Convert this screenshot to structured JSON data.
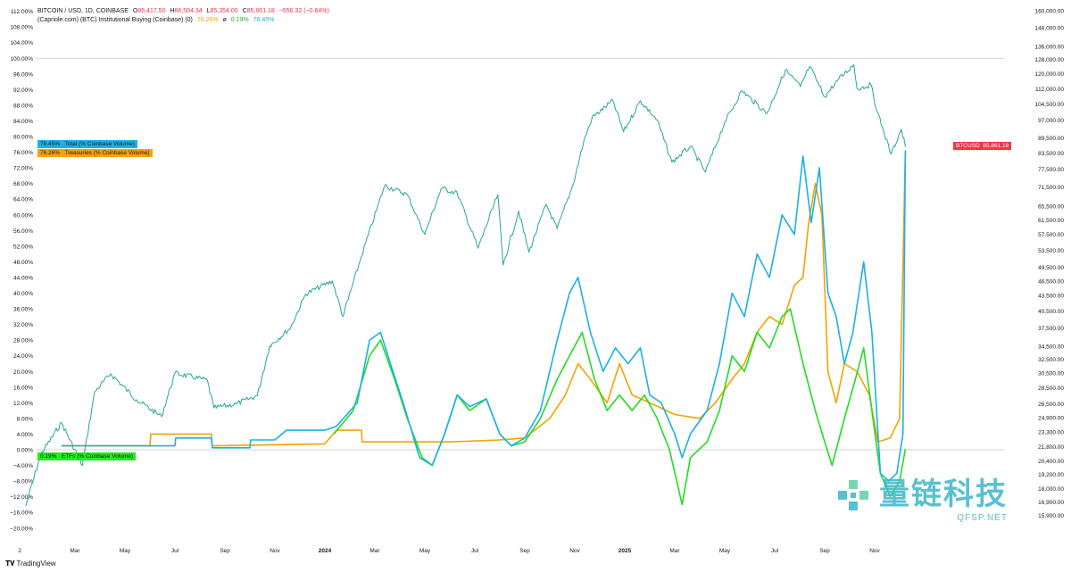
{
  "header": {
    "symbol": "BITCOIN / USD, 1D, COINBASE",
    "open_label": "O",
    "open": "86,417.50",
    "high_label": "H",
    "high": "86,504.34",
    "low_label": "L",
    "low": "85,354.00",
    "close_label": "C",
    "close": "85,861.18",
    "change": "−556.32 (−0.64%)",
    "indicator": "(Capriole.com) (BTC) Institutional Buying (Coinbase) (0)",
    "ind_treasuries": "76.26%",
    "ind_sep": "ø",
    "ind_etfs": "0.19%",
    "ind_total": "76.45%"
  },
  "tags": {
    "total": {
      "value": "76.45%",
      "label": "Total (% Coinbase Volume)"
    },
    "treasuries": {
      "value": "76.26%",
      "label": "Treasuries (% Coinbase Volume)"
    },
    "etfs": {
      "value": "0.19%",
      "label": "ETFs (% Coinbase Volume)"
    },
    "price": {
      "symbol": "BTCUSD",
      "value": "85,861.18"
    }
  },
  "colors": {
    "total": "#1cb0e6",
    "treasuries": "#f5a300",
    "etfs": "#22dd22",
    "price": "#26a69a",
    "price_tag": "#f23645",
    "down": "#f23645"
  },
  "footer": {
    "brand": "TradingView"
  },
  "watermark": {
    "main": "量链科技",
    "sub": "QFSP.NET"
  },
  "chart_data": {
    "type": "line",
    "left_axis": {
      "unit": "%",
      "range": [
        -20,
        112
      ],
      "ticks": [
        "112.00%",
        "108.00%",
        "104.00%",
        "100.00%",
        "96.00%",
        "92.00%",
        "88.00%",
        "84.00%",
        "80.00%",
        "76.00%",
        "72.00%",
        "68.00%",
        "64.00%",
        "60.00%",
        "56.00%",
        "52.00%",
        "48.00%",
        "44.00%",
        "40.00%",
        "36.00%",
        "32.00%",
        "28.00%",
        "24.00%",
        "20.00%",
        "16.00%",
        "12.00%",
        "8.00%",
        "4.00%",
        "0.00%",
        "−4.00%",
        "−8.00%",
        "−12.00%",
        "−16.00%",
        "−20.00%"
      ]
    },
    "right_axis": {
      "scale": "log",
      "ticks": [
        "160,000.00",
        "148,000.00",
        "136,000.00",
        "128,000.00",
        "120,000.00",
        "112,000.00",
        "104,500.00",
        "97,000.00",
        "89,500.00",
        "83,500.00",
        "77,500.00",
        "71,500.00",
        "65,500.00",
        "61,500.00",
        "57,500.00",
        "53,500.00",
        "49,500.00",
        "46,500.00",
        "43,500.00",
        "40,500.00",
        "37,500.00",
        "34,500.00",
        "32,500.00",
        "30,500.00",
        "28,500.00",
        "26,500.00",
        "24,900.00",
        "23,300.00",
        "21,800.00",
        "20,400.00",
        "19,200.00",
        "18,000.00",
        "16,900.00",
        "15,900.00"
      ]
    },
    "x_ticks": [
      [
        "2",
        "2023-01-01"
      ],
      [
        "Mar",
        "2023-03-01"
      ],
      [
        "May",
        "2023-05-01"
      ],
      [
        "Jul",
        "2023-07-01"
      ],
      [
        "Sep",
        "2023-09-01"
      ],
      [
        "Nov",
        "2023-11-01"
      ],
      [
        "2024",
        "2024-01-01"
      ],
      [
        "Mar",
        "2024-03-01"
      ],
      [
        "May",
        "2024-05-01"
      ],
      [
        "Jul",
        "2024-07-01"
      ],
      [
        "Sep",
        "2024-09-01"
      ],
      [
        "Nov",
        "2024-11-01"
      ],
      [
        "2025",
        "2025-01-01"
      ],
      [
        "Mar",
        "2025-03-01"
      ],
      [
        "May",
        "2025-05-01"
      ],
      [
        "Jul",
        "2025-07-01"
      ],
      [
        "Sep",
        "2025-09-01"
      ],
      [
        "Nov",
        "2025-11-01"
      ]
    ],
    "series": [
      {
        "name": "BTCUSD",
        "axis": "right",
        "points": [
          [
            "2023-01-02",
            16600
          ],
          [
            "2023-01-20",
            21000
          ],
          [
            "2023-02-15",
            24300
          ],
          [
            "2023-03-10",
            20000
          ],
          [
            "2023-03-25",
            28000
          ],
          [
            "2023-04-14",
            30400
          ],
          [
            "2023-05-15",
            27000
          ],
          [
            "2023-06-15",
            25000
          ],
          [
            "2023-07-01",
            30500
          ],
          [
            "2023-08-10",
            29500
          ],
          [
            "2023-08-18",
            26000
          ],
          [
            "2023-09-15",
            26500
          ],
          [
            "2023-10-10",
            27500
          ],
          [
            "2023-10-25",
            34500
          ],
          [
            "2023-11-20",
            37500
          ],
          [
            "2023-12-08",
            43800
          ],
          [
            "2024-01-10",
            46500
          ],
          [
            "2024-01-23",
            39500
          ],
          [
            "2024-02-15",
            52000
          ],
          [
            "2024-03-13",
            72000
          ],
          [
            "2024-04-10",
            69000
          ],
          [
            "2024-05-01",
            57500
          ],
          [
            "2024-05-21",
            71000
          ],
          [
            "2024-06-10",
            69500
          ],
          [
            "2024-07-05",
            54000
          ],
          [
            "2024-07-29",
            69000
          ],
          [
            "2024-08-05",
            50000
          ],
          [
            "2024-08-24",
            64000
          ],
          [
            "2024-09-06",
            53000
          ],
          [
            "2024-09-27",
            66000
          ],
          [
            "2024-10-10",
            59000
          ],
          [
            "2024-10-29",
            72000
          ],
          [
            "2024-11-12",
            88000
          ],
          [
            "2024-11-22",
            98000
          ],
          [
            "2024-12-17",
            106000
          ],
          [
            "2024-12-30",
            92000
          ],
          [
            "2025-01-20",
            106000
          ],
          [
            "2025-02-10",
            97000
          ],
          [
            "2025-02-28",
            80000
          ],
          [
            "2025-03-20",
            86000
          ],
          [
            "2025-04-08",
            76500
          ],
          [
            "2025-05-01",
            96000
          ],
          [
            "2025-05-22",
            111000
          ],
          [
            "2025-06-22",
            100000
          ],
          [
            "2025-07-14",
            122000
          ],
          [
            "2025-08-02",
            113000
          ],
          [
            "2025-08-13",
            124000
          ],
          [
            "2025-09-01",
            108000
          ],
          [
            "2025-09-18",
            117000
          ],
          [
            "2025-10-06",
            125000
          ],
          [
            "2025-10-10",
            112000
          ],
          [
            "2025-10-27",
            114000
          ],
          [
            "2025-11-04",
            101000
          ],
          [
            "2025-11-21",
            83000
          ],
          [
            "2025-12-03",
            93000
          ],
          [
            "2025-12-08",
            85861
          ]
        ]
      },
      {
        "name": "Total (% Coinbase Volume)",
        "axis": "left",
        "points": [
          [
            "2023-02-15",
            1
          ],
          [
            "2023-05-01",
            1
          ],
          [
            "2023-07-01",
            1
          ],
          [
            "2023-07-02",
            3
          ],
          [
            "2023-08-15",
            3
          ],
          [
            "2023-08-16",
            0.5
          ],
          [
            "2023-10-01",
            0.5
          ],
          [
            "2023-10-02",
            2.5
          ],
          [
            "2023-11-01",
            2.5
          ],
          [
            "2023-11-15",
            5
          ],
          [
            "2024-01-01",
            5
          ],
          [
            "2024-01-15",
            6
          ],
          [
            "2024-02-10",
            12
          ],
          [
            "2024-02-25",
            28
          ],
          [
            "2024-03-08",
            30
          ],
          [
            "2024-03-20",
            22
          ],
          [
            "2024-04-05",
            12
          ],
          [
            "2024-04-25",
            -2
          ],
          [
            "2024-05-10",
            -4
          ],
          [
            "2024-05-25",
            4
          ],
          [
            "2024-06-10",
            14
          ],
          [
            "2024-06-25",
            11
          ],
          [
            "2024-07-15",
            13
          ],
          [
            "2024-08-01",
            4
          ],
          [
            "2024-08-15",
            1
          ],
          [
            "2024-09-01",
            3
          ],
          [
            "2024-09-20",
            10
          ],
          [
            "2024-10-10",
            28
          ],
          [
            "2024-10-25",
            40
          ],
          [
            "2024-11-05",
            44
          ],
          [
            "2024-11-20",
            30
          ],
          [
            "2024-12-05",
            20
          ],
          [
            "2024-12-20",
            26
          ],
          [
            "2025-01-05",
            22
          ],
          [
            "2025-01-20",
            26
          ],
          [
            "2025-02-01",
            14
          ],
          [
            "2025-02-15",
            12
          ],
          [
            "2025-03-01",
            4
          ],
          [
            "2025-03-10",
            -2
          ],
          [
            "2025-03-20",
            4
          ],
          [
            "2025-04-10",
            10
          ],
          [
            "2025-04-25",
            22
          ],
          [
            "2025-05-10",
            40
          ],
          [
            "2025-05-25",
            34
          ],
          [
            "2025-06-10",
            50
          ],
          [
            "2025-06-25",
            44
          ],
          [
            "2025-07-10",
            60
          ],
          [
            "2025-07-25",
            55
          ],
          [
            "2025-08-05",
            75
          ],
          [
            "2025-08-15",
            58
          ],
          [
            "2025-08-25",
            72
          ],
          [
            "2025-09-05",
            40
          ],
          [
            "2025-09-15",
            34
          ],
          [
            "2025-09-25",
            22
          ],
          [
            "2025-10-05",
            30
          ],
          [
            "2025-10-18",
            48
          ],
          [
            "2025-10-28",
            30
          ],
          [
            "2025-11-08",
            -6
          ],
          [
            "2025-11-18",
            -8
          ],
          [
            "2025-11-28",
            -6
          ],
          [
            "2025-12-05",
            4
          ],
          [
            "2025-12-08",
            76.45
          ]
        ]
      },
      {
        "name": "Treasuries (% Coinbase Volume)",
        "axis": "left",
        "points": [
          [
            "2023-02-15",
            1
          ],
          [
            "2023-06-01",
            1
          ],
          [
            "2023-06-02",
            4
          ],
          [
            "2023-08-15",
            4
          ],
          [
            "2023-08-16",
            1
          ],
          [
            "2024-01-01",
            1.5
          ],
          [
            "2024-01-15",
            5
          ],
          [
            "2024-02-15",
            5
          ],
          [
            "2024-02-16",
            2
          ],
          [
            "2024-06-01",
            2
          ],
          [
            "2024-08-01",
            2.5
          ],
          [
            "2024-09-01",
            3
          ],
          [
            "2024-10-01",
            8
          ],
          [
            "2024-10-20",
            14
          ],
          [
            "2024-11-05",
            22
          ],
          [
            "2024-11-20",
            18
          ],
          [
            "2024-12-10",
            12
          ],
          [
            "2024-12-25",
            22
          ],
          [
            "2025-01-10",
            14
          ],
          [
            "2025-02-01",
            12
          ],
          [
            "2025-03-01",
            9
          ],
          [
            "2025-04-01",
            8
          ],
          [
            "2025-04-20",
            12
          ],
          [
            "2025-05-10",
            18
          ],
          [
            "2025-05-25",
            22
          ],
          [
            "2025-06-10",
            30
          ],
          [
            "2025-06-25",
            34
          ],
          [
            "2025-07-10",
            32
          ],
          [
            "2025-07-25",
            42
          ],
          [
            "2025-08-05",
            44
          ],
          [
            "2025-08-12",
            58
          ],
          [
            "2025-08-20",
            68
          ],
          [
            "2025-08-28",
            60
          ],
          [
            "2025-09-05",
            20
          ],
          [
            "2025-09-15",
            12
          ],
          [
            "2025-09-25",
            22
          ],
          [
            "2025-10-10",
            20
          ],
          [
            "2025-10-25",
            14
          ],
          [
            "2025-11-05",
            2
          ],
          [
            "2025-11-20",
            3
          ],
          [
            "2025-12-01",
            8
          ],
          [
            "2025-12-08",
            76.26
          ]
        ]
      },
      {
        "name": "ETFs (% Coinbase Volume)",
        "axis": "left",
        "points": [
          [
            "2024-01-12",
            4
          ],
          [
            "2024-02-05",
            10
          ],
          [
            "2024-02-25",
            24
          ],
          [
            "2024-03-08",
            28
          ],
          [
            "2024-03-25",
            18
          ],
          [
            "2024-04-10",
            8
          ],
          [
            "2024-04-28",
            -2
          ],
          [
            "2024-05-10",
            -4
          ],
          [
            "2024-05-25",
            4
          ],
          [
            "2024-06-10",
            14
          ],
          [
            "2024-06-25",
            10
          ],
          [
            "2024-07-15",
            13
          ],
          [
            "2024-08-01",
            4
          ],
          [
            "2024-08-15",
            1
          ],
          [
            "2024-09-01",
            2
          ],
          [
            "2024-09-20",
            8
          ],
          [
            "2024-10-10",
            18
          ],
          [
            "2024-10-25",
            24
          ],
          [
            "2024-11-10",
            30
          ],
          [
            "2024-11-25",
            18
          ],
          [
            "2024-12-10",
            10
          ],
          [
            "2024-12-25",
            14
          ],
          [
            "2025-01-10",
            10
          ],
          [
            "2025-01-25",
            14
          ],
          [
            "2025-02-10",
            8
          ],
          [
            "2025-02-25",
            0
          ],
          [
            "2025-03-10",
            -14
          ],
          [
            "2025-03-20",
            -2
          ],
          [
            "2025-04-10",
            2
          ],
          [
            "2025-04-25",
            10
          ],
          [
            "2025-05-10",
            24
          ],
          [
            "2025-05-25",
            20
          ],
          [
            "2025-06-10",
            30
          ],
          [
            "2025-06-25",
            26
          ],
          [
            "2025-07-10",
            34
          ],
          [
            "2025-07-20",
            36
          ],
          [
            "2025-08-05",
            22
          ],
          [
            "2025-08-20",
            10
          ],
          [
            "2025-09-01",
            2
          ],
          [
            "2025-09-10",
            -4
          ],
          [
            "2025-09-25",
            8
          ],
          [
            "2025-10-08",
            18
          ],
          [
            "2025-10-18",
            26
          ],
          [
            "2025-10-28",
            10
          ],
          [
            "2025-11-08",
            -6
          ],
          [
            "2025-11-20",
            -12
          ],
          [
            "2025-12-01",
            -8
          ],
          [
            "2025-12-08",
            0.19
          ]
        ]
      }
    ]
  }
}
